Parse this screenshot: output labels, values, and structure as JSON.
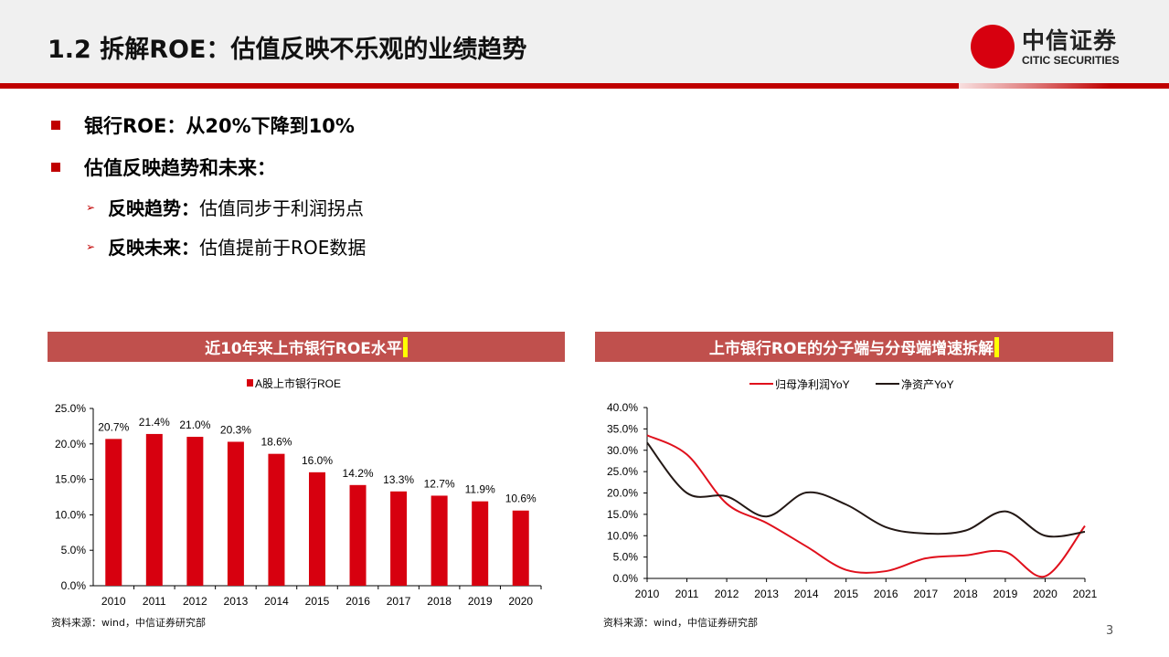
{
  "header": {
    "title": "1.2 拆解ROE：估值反映不乐观的业绩趋势",
    "logo_cn": "中信证券",
    "logo_en": "CITIC SECURITIES"
  },
  "bullets": [
    {
      "text": "银行ROE：从20%下降到10%"
    },
    {
      "text": "估值反映趋势和未来：",
      "sub": [
        {
          "key": "反映趋势：",
          "text": "估值同步于利润拐点"
        },
        {
          "key": "反映未来：",
          "text": "估值提前于ROE数据"
        }
      ]
    }
  ],
  "colors": {
    "accent": "#c00000",
    "panel": "#c0504d",
    "bar": "#d7000f",
    "line1": "#e0101c",
    "line2": "#231815"
  },
  "chart_data": [
    {
      "type": "bar",
      "title": "近10年来上市银行ROE水平",
      "categories": [
        "2010",
        "2011",
        "2012",
        "2013",
        "2014",
        "2015",
        "2016",
        "2017",
        "2018",
        "2019",
        "2020"
      ],
      "series": [
        {
          "name": "A股上市银行ROE",
          "values": [
            20.7,
            21.4,
            21.0,
            20.3,
            18.6,
            16.0,
            14.2,
            13.3,
            12.7,
            11.9,
            10.6
          ]
        }
      ],
      "data_labels": [
        "20.7%",
        "21.4%",
        "21.0%",
        "20.3%",
        "18.6%",
        "16.0%",
        "14.2%",
        "13.3%",
        "12.7%",
        "11.9%",
        "10.6%"
      ],
      "yticks": [
        "0.0%",
        "5.0%",
        "10.0%",
        "15.0%",
        "20.0%",
        "25.0%"
      ],
      "ylim": [
        0,
        25
      ],
      "legend": "top",
      "source": "资料来源：wind，中信证券研究部"
    },
    {
      "type": "line",
      "title": "上市银行ROE的分子端与分母端增速拆解",
      "categories": [
        "2010",
        "2011",
        "2012",
        "2013",
        "2014",
        "2015",
        "2016",
        "2017",
        "2018",
        "2019",
        "2020",
        "2021"
      ],
      "series": [
        {
          "name": "归母净利润YoY",
          "values": [
            33.5,
            29,
            17.5,
            13,
            7.5,
            2,
            1.7,
            4.7,
            5.4,
            6.2,
            0.5,
            12.3
          ]
        },
        {
          "name": "净资产YoY",
          "values": [
            31.8,
            20,
            19.2,
            14.5,
            20.1,
            17.3,
            12,
            10.5,
            11.2,
            15.7,
            10,
            10.9
          ]
        }
      ],
      "yticks": [
        "0.0%",
        "5.0%",
        "10.0%",
        "15.0%",
        "20.0%",
        "25.0%",
        "30.0%",
        "35.0%",
        "40.0%"
      ],
      "ylim": [
        0,
        40
      ],
      "legend": "top",
      "source": "资料来源：wind，中信证券研究部"
    }
  ],
  "page_number": "3"
}
